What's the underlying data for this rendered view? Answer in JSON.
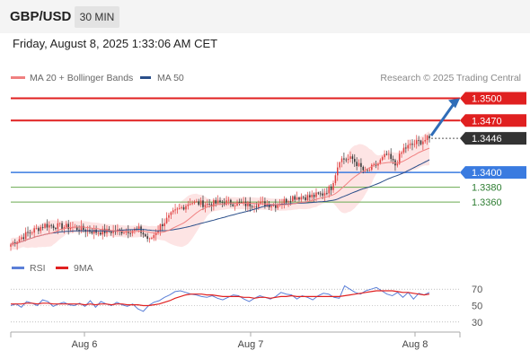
{
  "header": {
    "symbol": "GBP/USD",
    "timeframe": "30 MIN",
    "datetime": "Friday, August 8, 2025 1:33:06 AM CET"
  },
  "legend": [
    {
      "label": "MA 20 + Bollinger Bands",
      "color": "#f08080"
    },
    {
      "label": "MA 50",
      "color": "#2b4f8a"
    }
  ],
  "credit": "Research © 2025 Trading Central",
  "colors": {
    "resistance": "#e02020",
    "support": "#3a7be0",
    "target": "#6aaa50",
    "last_price_box": "#333333",
    "candle_up": "#e04040",
    "candle_down": "#333333",
    "bollinger_fill": "#fde4e4",
    "arrow": "#2f6db8"
  },
  "chart_data": [
    {
      "type": "candlestick",
      "x_ticks": [
        "Aug 6",
        "Aug 7",
        "Aug 8"
      ],
      "ylim": [
        1.329,
        1.352
      ],
      "price_levels": [
        {
          "value": 1.35,
          "label": "1.3500",
          "kind": "resistance"
        },
        {
          "value": 1.347,
          "label": "1.3470",
          "kind": "resistance"
        },
        {
          "value": 1.3446,
          "label": "1.3446",
          "kind": "last"
        },
        {
          "value": 1.34,
          "label": "1.3400",
          "kind": "support"
        },
        {
          "value": 1.338,
          "label": "1.3380",
          "kind": "target"
        },
        {
          "value": 1.336,
          "label": "1.3360",
          "kind": "target"
        }
      ],
      "close_path": [
        [
          0,
          1.3303
        ],
        [
          8,
          1.3318
        ],
        [
          16,
          1.3329
        ],
        [
          28,
          1.3326
        ],
        [
          40,
          1.332
        ],
        [
          52,
          1.3321
        ],
        [
          60,
          1.3323
        ],
        [
          65,
          1.3308
        ],
        [
          70,
          1.3328
        ],
        [
          76,
          1.3345
        ],
        [
          84,
          1.336
        ],
        [
          92,
          1.3357
        ],
        [
          100,
          1.336
        ],
        [
          110,
          1.3357
        ],
        [
          118,
          1.3358
        ],
        [
          124,
          1.3356
        ],
        [
          132,
          1.3367
        ],
        [
          140,
          1.3367
        ],
        [
          146,
          1.3371
        ],
        [
          150,
          1.338
        ],
        [
          154,
          1.3418
        ],
        [
          160,
          1.3418
        ],
        [
          166,
          1.34
        ],
        [
          172,
          1.3412
        ],
        [
          176,
          1.3424
        ],
        [
          180,
          1.341
        ],
        [
          184,
          1.3432
        ],
        [
          190,
          1.344
        ],
        [
          196,
          1.3446
        ]
      ],
      "candle_count": 197
    },
    {
      "type": "line",
      "name": "RSI",
      "legend": [
        {
          "label": "RSI",
          "color": "#5b7fd8"
        },
        {
          "label": "9MA",
          "color": "#e02020"
        }
      ],
      "ylim": [
        20,
        80
      ],
      "y_ticks": [
        70,
        50,
        30
      ],
      "values": [
        50,
        52,
        48,
        55,
        53,
        50,
        57,
        55,
        49,
        52,
        54,
        51,
        50,
        53,
        49,
        56,
        48,
        55,
        52,
        50,
        54,
        51,
        49,
        52,
        46,
        43,
        50,
        54,
        56,
        60,
        63,
        67,
        68,
        66,
        64,
        63,
        61,
        60,
        62,
        59,
        57,
        60,
        63,
        62,
        58,
        55,
        59,
        62,
        60,
        58,
        61,
        66,
        64,
        63,
        58,
        62,
        60,
        57,
        62,
        65,
        64,
        60,
        59,
        74,
        70,
        66,
        64,
        68,
        70,
        72,
        68,
        64,
        62,
        66,
        60,
        66,
        58,
        65,
        63,
        66
      ],
      "ma9": [
        52,
        52,
        52,
        53,
        53,
        52,
        53,
        53,
        52,
        52,
        52,
        52,
        52,
        52,
        51,
        52,
        51,
        52,
        52,
        51,
        52,
        52,
        51,
        51,
        51,
        50,
        50,
        51,
        52,
        54,
        56,
        59,
        61,
        63,
        64,
        64,
        64,
        63,
        63,
        62,
        61,
        61,
        61,
        61,
        60,
        60,
        59,
        60,
        60,
        59,
        60,
        61,
        61,
        62,
        61,
        61,
        61,
        61,
        61,
        61,
        61,
        61,
        61,
        62,
        63,
        64,
        65,
        66,
        67,
        68,
        68,
        68,
        68,
        67,
        66,
        66,
        65,
        64,
        63,
        64
      ]
    }
  ]
}
